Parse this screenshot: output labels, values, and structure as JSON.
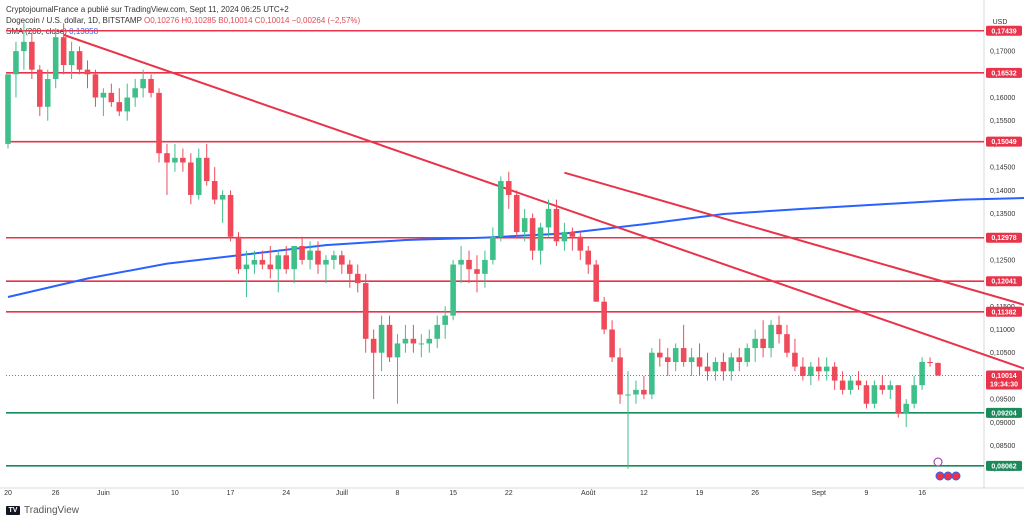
{
  "header": {
    "publisher_line": "CryptojournalFrance a publié sur TradingView.com, Sept 11, 2024 06:25 UTC+2",
    "symbol_line": "Dogecoin / U.S. dollar, 1D, BITSTAMP",
    "ohlc": "O0,10276  H0,10285  B0,10014  C0,10014  −0,00264 (−2,57%)",
    "sma_label": "SMA (200, close)",
    "sma_value": "0,13858"
  },
  "axis": {
    "currency": "USD",
    "y_ticks": [
      "0,17000",
      "0,16500",
      "0,16000",
      "0,15500",
      "0,15000",
      "0,14500",
      "0,14000",
      "0,13500",
      "0,13000",
      "0,12500",
      "0,12000",
      "0,11500",
      "0,11000",
      "0,10500",
      "0,10000",
      "0,09500",
      "0,09000",
      "0,08500",
      "0,08000"
    ],
    "x_ticks": [
      "20",
      "26",
      "Juin",
      "10",
      "17",
      "24",
      "Juill",
      "8",
      "15",
      "22",
      "Août",
      "12",
      "19",
      "26",
      "Sept",
      "9",
      "16"
    ]
  },
  "price_tags": [
    {
      "label": "0,17439",
      "color": "#e8334a"
    },
    {
      "label": "0,16532",
      "color": "#e8334a"
    },
    {
      "label": "0,15049",
      "color": "#e8334a"
    },
    {
      "label": "0,12978",
      "color": "#e8334a"
    },
    {
      "label": "0,12041",
      "color": "#e8334a"
    },
    {
      "label": "0,11382",
      "color": "#e8334a"
    },
    {
      "label": "0,09204",
      "color": "#1a8a5a"
    },
    {
      "label": "0,08062",
      "color": "#1a8a5a"
    }
  ],
  "last_price": {
    "label": "0,10014",
    "countdown": "19:34:30",
    "color": "#e8334a"
  },
  "footer": {
    "brand": "TradingView"
  },
  "chart_data": {
    "type": "candlestick",
    "y_range": [
      0.078,
      0.178
    ],
    "horizontal_levels": [
      {
        "value": 0.17439,
        "kind": "resistance"
      },
      {
        "value": 0.16532,
        "kind": "resistance"
      },
      {
        "value": 0.15049,
        "kind": "resistance"
      },
      {
        "value": 0.12978,
        "kind": "resistance"
      },
      {
        "value": 0.12041,
        "kind": "resistance"
      },
      {
        "value": 0.11382,
        "kind": "resistance"
      },
      {
        "value": 0.09204,
        "kind": "support"
      },
      {
        "value": 0.08062,
        "kind": "support"
      }
    ],
    "trendlines": [
      {
        "from": {
          "bar": 7,
          "price": 0.1735
        },
        "to": {
          "bar": 130,
          "price": 0.1003
        }
      },
      {
        "from": {
          "bar": 70,
          "price": 0.1438
        },
        "to": {
          "bar": 134,
          "price": 0.1123
        }
      }
    ],
    "sma200": [
      [
        0,
        0.117
      ],
      [
        10,
        0.121
      ],
      [
        20,
        0.1242
      ],
      [
        30,
        0.1262
      ],
      [
        40,
        0.1282
      ],
      [
        50,
        0.1293
      ],
      [
        60,
        0.1298
      ],
      [
        70,
        0.1307
      ],
      [
        80,
        0.1327
      ],
      [
        90,
        0.1349
      ],
      [
        100,
        0.136
      ],
      [
        110,
        0.137
      ],
      [
        120,
        0.138
      ],
      [
        134,
        0.1386
      ]
    ],
    "candles": [
      [
        0.15,
        0.165,
        0.149,
        0.165
      ],
      [
        0.165,
        0.172,
        0.16,
        0.17
      ],
      [
        0.17,
        0.176,
        0.166,
        0.172
      ],
      [
        0.172,
        0.174,
        0.164,
        0.166
      ],
      [
        0.166,
        0.167,
        0.156,
        0.158
      ],
      [
        0.158,
        0.166,
        0.155,
        0.164
      ],
      [
        0.164,
        0.175,
        0.162,
        0.173
      ],
      [
        0.173,
        0.176,
        0.165,
        0.167
      ],
      [
        0.167,
        0.172,
        0.164,
        0.17
      ],
      [
        0.17,
        0.171,
        0.165,
        0.166
      ],
      [
        0.166,
        0.168,
        0.162,
        0.165
      ],
      [
        0.165,
        0.166,
        0.158,
        0.16
      ],
      [
        0.16,
        0.162,
        0.156,
        0.161
      ],
      [
        0.161,
        0.163,
        0.158,
        0.159
      ],
      [
        0.159,
        0.162,
        0.156,
        0.157
      ],
      [
        0.157,
        0.163,
        0.155,
        0.16
      ],
      [
        0.16,
        0.164,
        0.158,
        0.162
      ],
      [
        0.162,
        0.166,
        0.16,
        0.164
      ],
      [
        0.164,
        0.165,
        0.16,
        0.161
      ],
      [
        0.161,
        0.162,
        0.146,
        0.148
      ],
      [
        0.148,
        0.15,
        0.139,
        0.146
      ],
      [
        0.146,
        0.15,
        0.144,
        0.147
      ],
      [
        0.147,
        0.149,
        0.144,
        0.146
      ],
      [
        0.146,
        0.148,
        0.137,
        0.139
      ],
      [
        0.139,
        0.149,
        0.138,
        0.147
      ],
      [
        0.147,
        0.15,
        0.141,
        0.142
      ],
      [
        0.142,
        0.145,
        0.137,
        0.138
      ],
      [
        0.138,
        0.14,
        0.133,
        0.139
      ],
      [
        0.139,
        0.14,
        0.129,
        0.13
      ],
      [
        0.13,
        0.131,
        0.122,
        0.123
      ],
      [
        0.123,
        0.127,
        0.117,
        0.124
      ],
      [
        0.124,
        0.127,
        0.122,
        0.125
      ],
      [
        0.125,
        0.127,
        0.123,
        0.124
      ],
      [
        0.124,
        0.128,
        0.121,
        0.123
      ],
      [
        0.123,
        0.127,
        0.118,
        0.126
      ],
      [
        0.126,
        0.128,
        0.122,
        0.123
      ],
      [
        0.123,
        0.128,
        0.12,
        0.128
      ],
      [
        0.128,
        0.13,
        0.124,
        0.125
      ],
      [
        0.125,
        0.129,
        0.123,
        0.127
      ],
      [
        0.127,
        0.129,
        0.122,
        0.124
      ],
      [
        0.124,
        0.126,
        0.12,
        0.125
      ],
      [
        0.125,
        0.127,
        0.123,
        0.126
      ],
      [
        0.126,
        0.127,
        0.122,
        0.124
      ],
      [
        0.124,
        0.125,
        0.119,
        0.122
      ],
      [
        0.122,
        0.124,
        0.118,
        0.12
      ],
      [
        0.12,
        0.122,
        0.105,
        0.108
      ],
      [
        0.108,
        0.11,
        0.095,
        0.105
      ],
      [
        0.105,
        0.113,
        0.101,
        0.111
      ],
      [
        0.111,
        0.113,
        0.103,
        0.104
      ],
      [
        0.104,
        0.109,
        0.094,
        0.107
      ],
      [
        0.107,
        0.111,
        0.105,
        0.108
      ],
      [
        0.108,
        0.111,
        0.105,
        0.107
      ],
      [
        0.107,
        0.109,
        0.104,
        0.107
      ],
      [
        0.107,
        0.11,
        0.105,
        0.108
      ],
      [
        0.108,
        0.113,
        0.106,
        0.111
      ],
      [
        0.111,
        0.115,
        0.108,
        0.113
      ],
      [
        0.113,
        0.125,
        0.112,
        0.124
      ],
      [
        0.124,
        0.128,
        0.12,
        0.125
      ],
      [
        0.125,
        0.127,
        0.12,
        0.123
      ],
      [
        0.123,
        0.126,
        0.118,
        0.122
      ],
      [
        0.122,
        0.127,
        0.119,
        0.125
      ],
      [
        0.125,
        0.132,
        0.124,
        0.13
      ],
      [
        0.13,
        0.143,
        0.129,
        0.142
      ],
      [
        0.142,
        0.144,
        0.136,
        0.139
      ],
      [
        0.139,
        0.14,
        0.13,
        0.131
      ],
      [
        0.131,
        0.136,
        0.129,
        0.134
      ],
      [
        0.134,
        0.135,
        0.125,
        0.127
      ],
      [
        0.127,
        0.133,
        0.124,
        0.132
      ],
      [
        0.132,
        0.138,
        0.13,
        0.136
      ],
      [
        0.136,
        0.138,
        0.128,
        0.129
      ],
      [
        0.129,
        0.133,
        0.127,
        0.131
      ],
      [
        0.131,
        0.132,
        0.127,
        0.13
      ],
      [
        0.13,
        0.131,
        0.125,
        0.127
      ],
      [
        0.127,
        0.128,
        0.122,
        0.124
      ],
      [
        0.124,
        0.125,
        0.116,
        0.116
      ],
      [
        0.116,
        0.117,
        0.109,
        0.11
      ],
      [
        0.11,
        0.112,
        0.103,
        0.104
      ],
      [
        0.104,
        0.106,
        0.094,
        0.096
      ],
      [
        0.096,
        0.101,
        0.08,
        0.096
      ],
      [
        0.096,
        0.099,
        0.094,
        0.097
      ],
      [
        0.097,
        0.1,
        0.095,
        0.096
      ],
      [
        0.096,
        0.106,
        0.095,
        0.105
      ],
      [
        0.105,
        0.108,
        0.102,
        0.104
      ],
      [
        0.104,
        0.106,
        0.1,
        0.103
      ],
      [
        0.103,
        0.107,
        0.101,
        0.106
      ],
      [
        0.106,
        0.111,
        0.102,
        0.103
      ],
      [
        0.103,
        0.106,
        0.1,
        0.104
      ],
      [
        0.104,
        0.107,
        0.1,
        0.102
      ],
      [
        0.102,
        0.105,
        0.099,
        0.101
      ],
      [
        0.101,
        0.104,
        0.099,
        0.103
      ],
      [
        0.103,
        0.105,
        0.099,
        0.101
      ],
      [
        0.101,
        0.105,
        0.099,
        0.104
      ],
      [
        0.104,
        0.106,
        0.101,
        0.103
      ],
      [
        0.103,
        0.107,
        0.102,
        0.106
      ],
      [
        0.106,
        0.11,
        0.103,
        0.108
      ],
      [
        0.108,
        0.112,
        0.104,
        0.106
      ],
      [
        0.106,
        0.112,
        0.104,
        0.111
      ],
      [
        0.111,
        0.113,
        0.107,
        0.109
      ],
      [
        0.109,
        0.111,
        0.104,
        0.105
      ],
      [
        0.105,
        0.108,
        0.101,
        0.102
      ],
      [
        0.102,
        0.104,
        0.099,
        0.1
      ],
      [
        0.1,
        0.103,
        0.098,
        0.102
      ],
      [
        0.102,
        0.104,
        0.099,
        0.101
      ],
      [
        0.101,
        0.104,
        0.099,
        0.102
      ],
      [
        0.102,
        0.103,
        0.097,
        0.099
      ],
      [
        0.099,
        0.101,
        0.096,
        0.097
      ],
      [
        0.097,
        0.1,
        0.096,
        0.099
      ],
      [
        0.099,
        0.101,
        0.097,
        0.098
      ],
      [
        0.098,
        0.099,
        0.093,
        0.094
      ],
      [
        0.094,
        0.099,
        0.093,
        0.098
      ],
      [
        0.098,
        0.1,
        0.096,
        0.097
      ],
      [
        0.097,
        0.099,
        0.095,
        0.098
      ],
      [
        0.098,
        0.098,
        0.091,
        0.092
      ],
      [
        0.092,
        0.095,
        0.089,
        0.094
      ],
      [
        0.094,
        0.1,
        0.093,
        0.098
      ],
      [
        0.098,
        0.104,
        0.097,
        0.103
      ],
      [
        0.103,
        0.104,
        0.102,
        0.1028
      ],
      [
        0.1028,
        0.1029,
        0.1,
        0.1001
      ]
    ]
  }
}
